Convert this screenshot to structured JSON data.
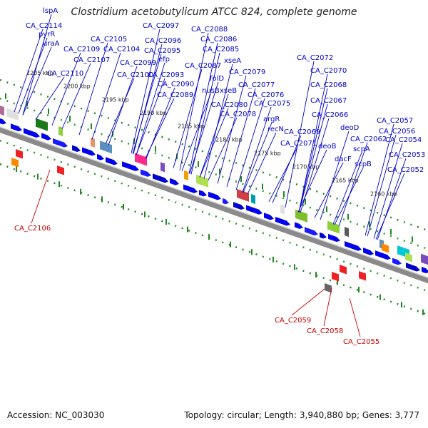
{
  "title": "Clostridium acetobutylicum ATCC 824, complete genome",
  "footer": {
    "accession": "Accession: NC_003030",
    "summary": "Topology: circular; Length: 3,940,880 bp; Genes: 3,777"
  },
  "scale_labels": [
    "2205 kbp",
    "2200 kbp",
    "2195 kbp",
    "2190 kbp",
    "2185 kbp",
    "2180 kbp",
    "2175 kbp",
    "2170 kbp",
    "2165 kbp",
    "2160 kbp"
  ],
  "forward_labels": [
    "lspA",
    "CA_C2114",
    "pyrR",
    "uraA",
    "CA_C2110",
    "CA_C2109",
    "CA_C2107",
    "CA_C2105",
    "CA_C2104",
    "CA_C2100",
    "CA_C2099",
    "CA_C2097",
    "CA_C2096",
    "CA_C2095",
    "efp",
    "CA_C2093",
    "CA_C2090",
    "CA_C2089",
    "CA_C2088",
    "CA_C2086",
    "CA_C2085",
    "CA_C2087",
    "nusB",
    "folD",
    "xseA",
    "xseB",
    "CA_C2079",
    "CA_C2077",
    "CA_C2080",
    "CA_C2076",
    "CA_C2078",
    "CA_C2075",
    "argR",
    "recN",
    "CA_C2072",
    "CA_C2070",
    "CA_C2068",
    "CA_C2067",
    "CA_C2066",
    "CA_C2069",
    "CA_C2071",
    "deoD",
    "deoB",
    "dacF",
    "CA_C2062",
    "scpA",
    "scpB",
    "CA_C2057",
    "CA_C2056",
    "CA_C2054",
    "CA_C2053",
    "CA_C2052"
  ],
  "reverse_labels": [
    "CA_C2106",
    "CA_C2059",
    "CA_C2058",
    "CA_C2055"
  ],
  "colors": {
    "backbone": "#888888",
    "forward_gene": "#0000ee",
    "forward_label": "#0000cc",
    "reverse_label": "#cc0000",
    "tick": "#228822"
  }
}
